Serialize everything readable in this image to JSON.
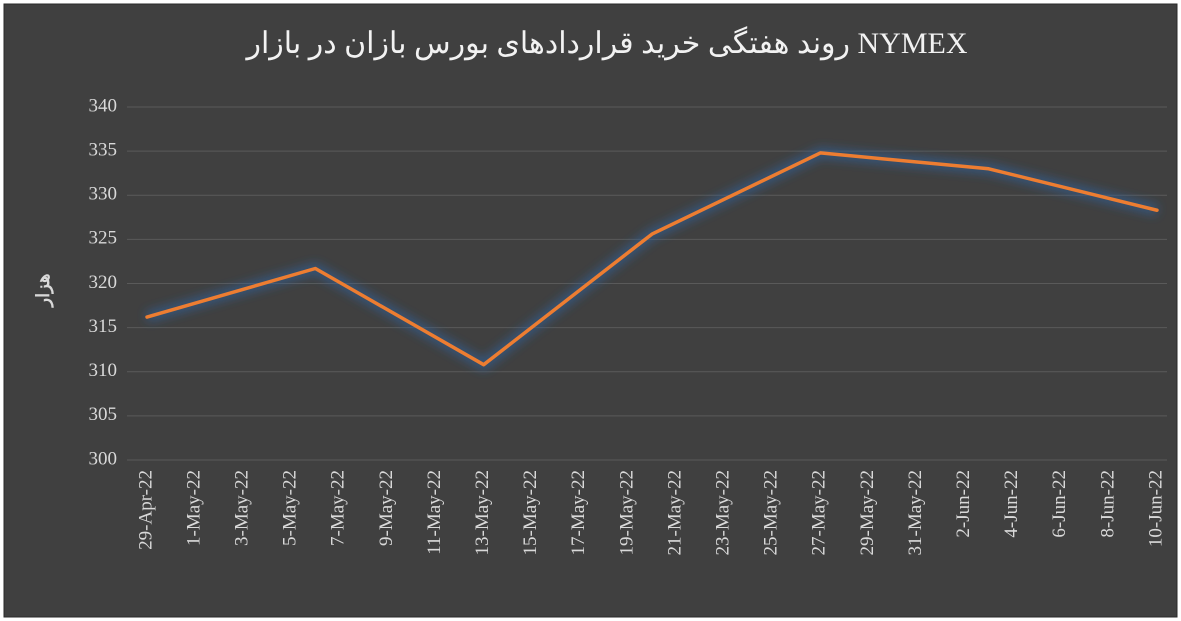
{
  "chart_data": {
    "type": "line",
    "title": "روند هفتگی خرید قراردادهای بورس بازان در بازار NYMEX",
    "y_label": "هزار",
    "x": [
      "29-Apr-22",
      "6-May-22",
      "13-May-22",
      "20-May-22",
      "27-May-22",
      "3-Jun-22",
      "10-Jun-22"
    ],
    "series": [
      {
        "name": "NYMEX",
        "color": "#ed7d31",
        "values": [
          316.2,
          321.7,
          310.8,
          325.6,
          334.8,
          333.0,
          328.3
        ]
      }
    ],
    "xlim": [
      "29-Apr-22",
      "10-Jun-22"
    ],
    "xticks": [
      "29-Apr-22",
      "1-May-22",
      "3-May-22",
      "5-May-22",
      "7-May-22",
      "9-May-22",
      "11-May-22",
      "13-May-22",
      "15-May-22",
      "17-May-22",
      "19-May-22",
      "21-May-22",
      "23-May-22",
      "25-May-22",
      "27-May-22",
      "29-May-22",
      "31-May-22",
      "2-Jun-22",
      "4-Jun-22",
      "6-Jun-22",
      "8-Jun-22",
      "10-Jun-22"
    ],
    "ylim": [
      300,
      340
    ],
    "yticks": [
      300,
      305,
      310,
      315,
      320,
      325,
      330,
      335,
      340
    ],
    "grid": true
  }
}
